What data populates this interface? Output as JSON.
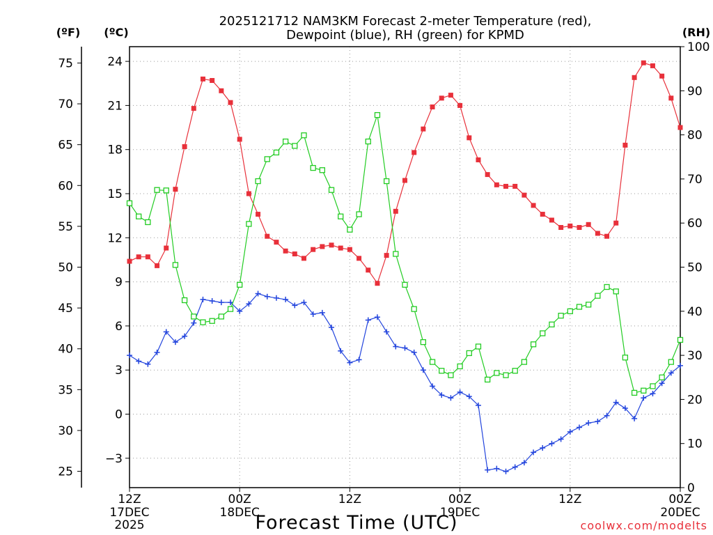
{
  "chart_data": {
    "type": "line",
    "title_line1": "2025121712 NAM3KM Forecast 2-meter Temperature (red),",
    "title_line2": "Dewpoint (blue), RH (green) for KPMD",
    "xlabel": "Forecast Time (UTC)",
    "credit": "coolwx.com/modelts",
    "axes": {
      "left_c": {
        "unit_label": "(ºC)",
        "ylim": [
          -5,
          25
        ],
        "ticks": [
          -3,
          0,
          3,
          6,
          9,
          12,
          15,
          18,
          21,
          24
        ],
        "tick_labels": [
          "−3",
          "0",
          "3",
          "6",
          "9",
          "12",
          "15",
          "18",
          "21",
          "24"
        ]
      },
      "left_f": {
        "unit_label": "(ºF)",
        "ylim": [
          23,
          77
        ],
        "ticks": [
          25,
          30,
          35,
          40,
          45,
          50,
          55,
          60,
          65,
          70,
          75
        ],
        "tick_labels": [
          "25",
          "30",
          "35",
          "40",
          "45",
          "50",
          "55",
          "60",
          "65",
          "70",
          "75"
        ]
      },
      "right_rh": {
        "unit_label": "(RH)",
        "ylim": [
          0,
          100
        ],
        "ticks": [
          0,
          10,
          20,
          30,
          40,
          50,
          60,
          70,
          80,
          90,
          100
        ],
        "tick_labels": [
          "0",
          "10",
          "20",
          "30",
          "40",
          "50",
          "60",
          "70",
          "80",
          "90",
          "100"
        ]
      },
      "x": {
        "xlim": [
          0,
          60
        ],
        "unit": "forecast hour",
        "ticks": [
          {
            "hour": 0,
            "label": "12Z",
            "sub1": "17DEC",
            "sub2": "2025"
          },
          {
            "hour": 12,
            "label": "00Z",
            "sub1": "18DEC",
            "sub2": ""
          },
          {
            "hour": 24,
            "label": "12Z",
            "sub1": "",
            "sub2": ""
          },
          {
            "hour": 36,
            "label": "00Z",
            "sub1": "19DEC",
            "sub2": ""
          },
          {
            "hour": 48,
            "label": "12Z",
            "sub1": "",
            "sub2": ""
          },
          {
            "hour": 60,
            "label": "00Z",
            "sub1": "20DEC",
            "sub2": ""
          }
        ]
      }
    },
    "x": [
      0,
      1,
      2,
      3,
      4,
      5,
      6,
      7,
      8,
      9,
      10,
      11,
      12,
      13,
      14,
      15,
      16,
      17,
      18,
      19,
      20,
      21,
      22,
      23,
      24,
      25,
      26,
      27,
      28,
      29,
      30,
      31,
      32,
      33,
      34,
      35,
      36,
      37,
      38,
      39,
      40,
      41,
      42,
      43,
      44,
      45,
      46,
      47,
      48,
      49,
      50,
      51,
      52,
      53,
      54,
      55,
      56,
      57,
      58,
      59,
      60
    ],
    "series": [
      {
        "name": "Temperature",
        "unit": "°C",
        "axis": "left_c",
        "color": "#e8303a",
        "marker": "filled-square",
        "values": [
          10.4,
          10.7,
          10.7,
          10.1,
          11.3,
          15.3,
          18.2,
          20.8,
          22.8,
          22.7,
          22.0,
          21.2,
          18.7,
          15.0,
          13.6,
          12.1,
          11.7,
          11.1,
          10.9,
          10.6,
          11.2,
          11.4,
          11.5,
          11.3,
          11.2,
          10.6,
          9.8,
          8.9,
          10.8,
          13.8,
          15.9,
          17.8,
          19.4,
          20.9,
          21.5,
          21.7,
          21.0,
          18.8,
          17.3,
          16.3,
          15.6,
          15.5,
          15.5,
          14.9,
          14.2,
          13.6,
          13.2,
          12.7,
          12.8,
          12.7,
          12.9,
          12.3,
          12.1,
          13.0,
          18.3,
          22.9,
          23.9,
          23.7,
          23.0,
          21.5,
          19.5
        ]
      },
      {
        "name": "Dewpoint",
        "unit": "°C",
        "axis": "left_c",
        "color": "#2244dd",
        "marker": "plus",
        "values": [
          4.0,
          3.6,
          3.4,
          4.2,
          5.6,
          4.9,
          5.3,
          6.2,
          7.8,
          7.7,
          7.6,
          7.6,
          7.0,
          7.5,
          8.2,
          8.0,
          7.9,
          7.8,
          7.4,
          7.6,
          6.8,
          6.9,
          5.9,
          4.3,
          3.5,
          3.7,
          6.4,
          6.6,
          5.6,
          4.6,
          4.5,
          4.2,
          3.0,
          1.9,
          1.3,
          1.1,
          1.5,
          1.2,
          0.6,
          -3.8,
          -3.7,
          -3.9,
          -3.6,
          -3.3,
          -2.6,
          -2.3,
          -2.0,
          -1.7,
          -1.2,
          -0.9,
          -0.6,
          -0.5,
          -0.1,
          0.8,
          0.4,
          -0.3,
          1.1,
          1.4,
          2.1,
          2.8,
          3.3
        ]
      },
      {
        "name": "RH",
        "unit": "%",
        "axis": "right_rh",
        "color": "#22cc22",
        "marker": "open-square",
        "values": [
          64.5,
          61.5,
          60.2,
          67.5,
          67.4,
          50.5,
          42.5,
          38.8,
          37.5,
          37.8,
          38.8,
          40.5,
          46.0,
          59.8,
          69.5,
          74.5,
          76.0,
          78.5,
          77.5,
          79.9,
          72.5,
          72.0,
          67.5,
          61.5,
          58.5,
          62.0,
          78.5,
          84.5,
          69.5,
          53.0,
          46.0,
          40.5,
          33.0,
          28.5,
          26.5,
          25.5,
          27.5,
          30.5,
          32.0,
          24.5,
          26.0,
          25.5,
          26.5,
          28.5,
          32.5,
          35.0,
          37.0,
          39.0,
          40.0,
          41.0,
          41.5,
          43.5,
          45.5,
          44.5,
          29.5,
          21.5,
          22.0,
          23.0,
          25.0,
          28.5,
          33.5
        ]
      }
    ]
  }
}
